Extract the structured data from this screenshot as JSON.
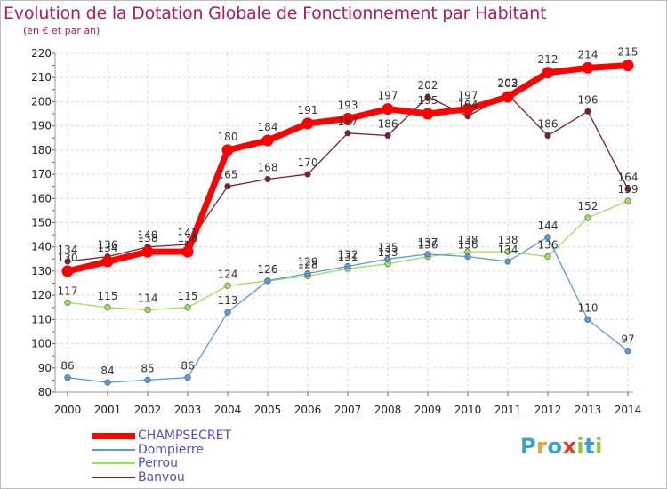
{
  "chart_data": {
    "type": "line",
    "title": "Evolution de la Dotation Globale de Fonctionnement par Habitant",
    "subtitle": "(en € et par an)",
    "x": [
      "2000",
      "2001",
      "2002",
      "2003",
      "2004",
      "2005",
      "2006",
      "2007",
      "2008",
      "2009",
      "2010",
      "2011",
      "2012",
      "2013",
      "2014"
    ],
    "ylim": [
      80,
      220
    ],
    "yticks": [
      80,
      90,
      100,
      110,
      120,
      130,
      140,
      150,
      160,
      170,
      180,
      190,
      200,
      210,
      220
    ],
    "grid": true,
    "legend_position": "bottom-left",
    "series": [
      {
        "name": "CHAMPSECRET",
        "color": "#ff0000",
        "values": [
          130,
          134,
          138,
          138,
          180,
          184,
          191,
          193,
          197,
          195,
          197,
          202,
          212,
          214,
          215
        ]
      },
      {
        "name": "Dompierre",
        "color": "#5b9bd5",
        "values": [
          86,
          84,
          85,
          86,
          113,
          126,
          129,
          132,
          135,
          137,
          136,
          134,
          144,
          110,
          97
        ]
      },
      {
        "name": "Perrou",
        "color": "#99e05b",
        "values": [
          117,
          115,
          114,
          115,
          124,
          126,
          128,
          131,
          133,
          136,
          138,
          138,
          136,
          152,
          159
        ]
      },
      {
        "name": "Banvou",
        "color": "#7b2323",
        "values": [
          134,
          136,
          140,
          141,
          165,
          168,
          170,
          187,
          186,
          202,
          194,
          203,
          186,
          196,
          164
        ]
      }
    ]
  },
  "logo": {
    "letters": [
      "P",
      "r",
      "o",
      "x",
      "i",
      "t",
      "i"
    ],
    "colors": [
      "#3a9fd8",
      "#f0a020",
      "#3a9fd8",
      "#e53a2a",
      "#8cc63f",
      "#3a9fd8",
      "#8cc63f"
    ]
  }
}
